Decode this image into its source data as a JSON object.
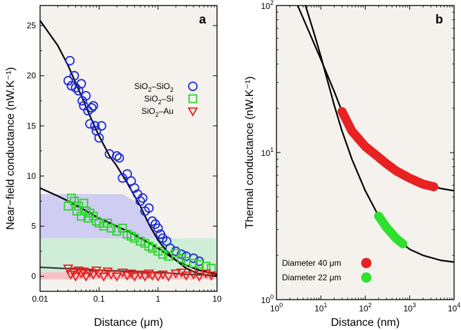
{
  "chart_data": [
    {
      "type": "scatter",
      "panel_label": "a",
      "xlabel": "Distance (μm)",
      "ylabel": "Near−field conductance (nW.K⁻¹)",
      "xscale": "log",
      "xlim": [
        0.01,
        10
      ],
      "ylim": [
        -1.5,
        27
      ],
      "xticks": [
        "0.01",
        "0.1",
        "1",
        "10"
      ],
      "yticks": [
        "0",
        "5",
        "10",
        "15",
        "20",
        "25"
      ],
      "background": "#f5f2ee",
      "legend_position": "upper-right",
      "series": [
        {
          "name": "SiO2–SiO2",
          "name_parts": [
            "SiO",
            "2",
            "–SiO",
            "2"
          ],
          "marker": "circle",
          "color": "#1c2bd8",
          "x": [
            0.032,
            0.03,
            0.034,
            0.038,
            0.04,
            0.045,
            0.05,
            0.052,
            0.055,
            0.06,
            0.065,
            0.07,
            0.075,
            0.08,
            0.085,
            0.09,
            0.1,
            0.11,
            0.15,
            0.2,
            0.22,
            0.25,
            0.3,
            0.35,
            0.4,
            0.45,
            0.5,
            0.55,
            0.6,
            0.7,
            0.8,
            0.9,
            1.0,
            1.1,
            1.2,
            1.4,
            1.6,
            2.0,
            2.5,
            3.0,
            4.0,
            5.0
          ],
          "y": [
            21.5,
            19.5,
            19.0,
            20.0,
            18.8,
            18.5,
            19.2,
            17.5,
            17.0,
            18.0,
            16.5,
            15.2,
            16.8,
            17.0,
            15.0,
            14.5,
            13.8,
            15.0,
            12.2,
            12.0,
            11.8,
            9.8,
            10.2,
            9.5,
            8.8,
            8.2,
            7.5,
            7.8,
            6.5,
            6.8,
            5.5,
            5.2,
            4.8,
            4.2,
            3.8,
            3.5,
            2.8,
            2.5,
            2.2,
            2.0,
            1.8,
            1.5
          ]
        },
        {
          "name": "SiO2–Si",
          "name_parts": [
            "SiO",
            "2",
            "–Si",
            ""
          ],
          "marker": "square",
          "color": "#2ed12e",
          "x": [
            0.03,
            0.034,
            0.038,
            0.042,
            0.045,
            0.05,
            0.055,
            0.06,
            0.065,
            0.07,
            0.08,
            0.09,
            0.1,
            0.12,
            0.14,
            0.16,
            0.2,
            0.25,
            0.3,
            0.35,
            0.4,
            0.5,
            0.6,
            0.7,
            0.8,
            1.0,
            1.2,
            1.5,
            2.0,
            2.5,
            3.0,
            4.0,
            5.0,
            6.5,
            8.0
          ],
          "y": [
            7.0,
            7.8,
            7.5,
            6.5,
            7.0,
            6.0,
            7.3,
            6.5,
            5.8,
            6.3,
            6.0,
            5.5,
            5.3,
            5.0,
            5.3,
            4.8,
            4.5,
            4.8,
            4.2,
            4.0,
            3.8,
            3.5,
            3.3,
            3.0,
            2.8,
            2.5,
            2.2,
            2.0,
            2.3,
            1.8,
            1.5,
            1.3,
            1.2,
            1.0,
            0.8
          ]
        },
        {
          "name": "SiO2–Au",
          "name_parts": [
            "SiO",
            "2",
            "–Au",
            ""
          ],
          "marker": "triangle-down",
          "color": "#e62020",
          "x": [
            0.03,
            0.033,
            0.037,
            0.04,
            0.045,
            0.05,
            0.055,
            0.06,
            0.07,
            0.08,
            0.09,
            0.1,
            0.12,
            0.14,
            0.16,
            0.2,
            0.25,
            0.3,
            0.35,
            0.4,
            0.5,
            0.6,
            0.7,
            0.8,
            1.0,
            1.2,
            1.5,
            2.0,
            2.5,
            3.0,
            4.0,
            5.0,
            6.5,
            8.0
          ],
          "y": [
            0.8,
            0.2,
            0.5,
            0.0,
            0.6,
            0.3,
            0.5,
            0.0,
            0.4,
            0.2,
            0.6,
            0.3,
            0.0,
            0.5,
            0.2,
            0.0,
            0.4,
            0.1,
            0.3,
            0.0,
            0.2,
            0.0,
            0.3,
            0.1,
            0.0,
            0.2,
            0.0,
            0.3,
            0.4,
            0.1,
            0.2,
            0.0,
            0.3,
            0.1
          ]
        }
      ],
      "fit_curves": [
        {
          "color": "#000000",
          "x": [
            0.01,
            0.02,
            0.03,
            0.05,
            0.07,
            0.1,
            0.15,
            0.2,
            0.3,
            0.5,
            0.7,
            1.0,
            1.5,
            2.0,
            3.0,
            5.0,
            10.0
          ],
          "y": [
            25.5,
            23.0,
            21.0,
            18.0,
            16.0,
            14.0,
            12.0,
            11.0,
            9.3,
            7.0,
            5.2,
            3.6,
            2.3,
            1.6,
            0.8,
            0.2,
            0.0
          ]
        },
        {
          "color": "#000000",
          "x": [
            0.01,
            0.02,
            0.03,
            0.05,
            0.07,
            0.1,
            0.2,
            0.3,
            0.5,
            1.0,
            1.5,
            2.0,
            3.0,
            5.0,
            10.0
          ],
          "y": [
            8.8,
            8.0,
            7.5,
            6.8,
            6.3,
            5.8,
            5.0,
            4.5,
            3.8,
            2.8,
            2.1,
            1.6,
            1.1,
            0.6,
            0.2
          ]
        },
        {
          "color": "#3a3a3a",
          "x": [
            0.01,
            0.1,
            1.0,
            3.0,
            10.0
          ],
          "y": [
            0.9,
            0.6,
            0.4,
            0.2,
            0.1
          ]
        }
      ],
      "shaded_bands": [
        {
          "color": "#c9c7f3",
          "x": [
            0.01,
            0.1,
            0.25,
            0.4,
            0.6,
            1.0,
            10.0
          ],
          "upper": [
            8.2,
            8.2,
            8.2,
            7.5,
            6.0,
            4.0,
            3.0
          ],
          "lower": [
            3.8,
            3.8,
            3.8,
            3.8,
            3.8,
            3.8,
            3.0
          ]
        },
        {
          "color": "#c9ecd4",
          "x": [
            0.01,
            10.0
          ],
          "upper": [
            3.8,
            3.8
          ],
          "lower": [
            0.4,
            0.4
          ]
        },
        {
          "color": "#f6b9bd",
          "x": [
            0.01,
            10.0
          ],
          "upper": [
            0.4,
            0.4
          ],
          "lower": [
            -0.3,
            -0.3
          ]
        }
      ]
    },
    {
      "type": "scatter",
      "panel_label": "b",
      "xlabel": "Distance (nm)",
      "ylabel": "Thermal conductance (nW.K⁻¹)",
      "xscale": "log",
      "yscale": "log",
      "xlim": [
        1,
        10000
      ],
      "ylim": [
        1,
        100
      ],
      "xticks": [
        {
          "base": "10",
          "exp": "0"
        },
        {
          "base": "10",
          "exp": "1"
        },
        {
          "base": "10",
          "exp": "2"
        },
        {
          "base": "10",
          "exp": "3"
        },
        {
          "base": "10",
          "exp": "4"
        }
      ],
      "yticks": [
        {
          "base": "10",
          "exp": "0"
        },
        {
          "base": "10",
          "exp": "1"
        },
        {
          "base": "10",
          "exp": "2"
        }
      ],
      "background": "#f5f2ee",
      "legend_position": "lower-left",
      "series": [
        {
          "name": "Diameter 40 μm",
          "marker": "circle-filled",
          "color": "#e82222",
          "x_range": [
            30,
            3500
          ],
          "y": [
            18,
            6
          ]
        },
        {
          "name": "Diameter 22 μm",
          "marker": "circle-filled",
          "color": "#2fe02f",
          "x_range": [
            200,
            700
          ],
          "y": [
            3.6,
            2.6
          ]
        }
      ],
      "fit_curves": [
        {
          "color": "#000000",
          "x": [
            3,
            5,
            10,
            20,
            30,
            50,
            100,
            200,
            300,
            500,
            1000,
            2000,
            5000,
            10000
          ],
          "y": [
            100,
            70,
            43,
            26,
            19,
            14,
            11,
            9.3,
            8.4,
            7.5,
            6.7,
            6.1,
            5.7,
            5.5
          ]
        },
        {
          "color": "#000000",
          "x": [
            4.5,
            7,
            10,
            20,
            30,
            50,
            100,
            200,
            300,
            500,
            1000,
            2000,
            5000,
            10000
          ],
          "y": [
            100,
            65,
            45,
            21,
            14,
            9.0,
            5.5,
            3.7,
            3.1,
            2.6,
            2.2,
            2.0,
            1.85,
            1.8
          ]
        }
      ]
    }
  ]
}
